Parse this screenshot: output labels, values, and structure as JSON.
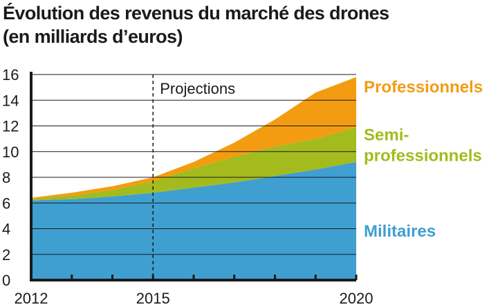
{
  "chart_data": {
    "type": "area",
    "stacked": true,
    "title": "Évolution des revenus du marché des drones",
    "subtitle": "(en milliards d’euros)",
    "x": [
      2012,
      2013,
      2014,
      2015,
      2016,
      2017,
      2018,
      2019,
      2020
    ],
    "x_tick_labels": [
      "2012",
      "2015",
      "2020"
    ],
    "xlim": [
      2012,
      2020
    ],
    "ylim": [
      0,
      16
    ],
    "y_ticks": [
      0,
      2,
      4,
      6,
      8,
      10,
      12,
      14,
      16
    ],
    "grid": true,
    "projection_start": 2015,
    "annotation": "Projections",
    "series": [
      {
        "name": "Militaires",
        "label_lines": [
          "Militaires"
        ],
        "color": "#3f9fd0",
        "values": [
          6.2,
          6.3,
          6.5,
          6.8,
          7.2,
          7.6,
          8.1,
          8.6,
          9.2
        ]
      },
      {
        "name": "Semi-professionnels",
        "label_lines": [
          "Semi-",
          "professionnels"
        ],
        "color": "#a3bb1d",
        "values": [
          0.1,
          0.3,
          0.5,
          0.9,
          1.5,
          2.0,
          2.3,
          2.4,
          2.7
        ]
      },
      {
        "name": "Professionnels",
        "label_lines": [
          "Professionnels"
        ],
        "color": "#f39c12",
        "values": [
          0.1,
          0.2,
          0.3,
          0.3,
          0.5,
          1.1,
          2.1,
          3.6,
          3.9
        ]
      }
    ]
  }
}
